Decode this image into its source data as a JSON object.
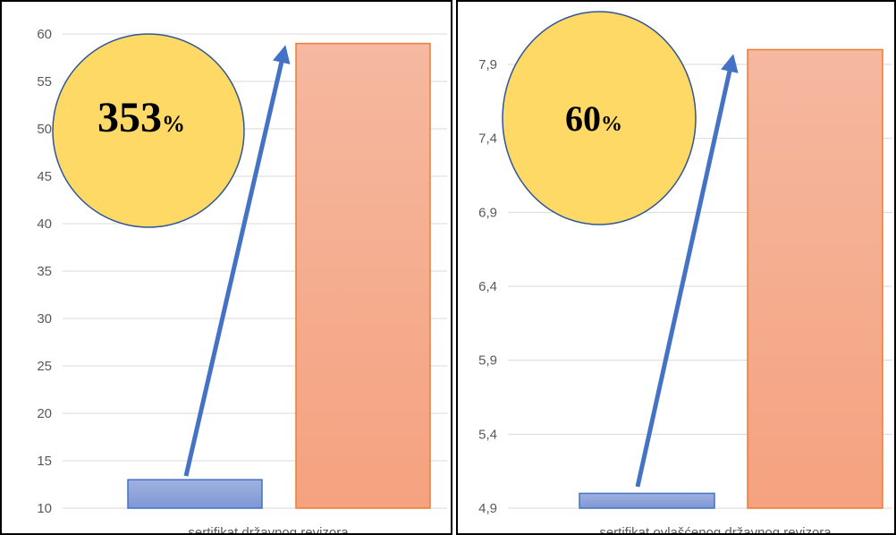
{
  "chart_data": [
    {
      "type": "bar",
      "categories": [
        "sertifikat državnog revizora"
      ],
      "xlabel": "sertifikat državnog revizora",
      "series": [
        {
          "values": [
            13
          ]
        },
        {
          "values": [
            59
          ]
        }
      ],
      "ylim": [
        10,
        60
      ],
      "yticks": [
        10,
        15,
        20,
        25,
        30,
        35,
        40,
        45,
        50,
        55,
        60
      ],
      "ytick_labels": [
        "10",
        "15",
        "20",
        "25",
        "30",
        "35",
        "40",
        "45",
        "50",
        "55",
        "60"
      ],
      "grid": true,
      "callout": {
        "number": "353",
        "suffix": "%"
      }
    },
    {
      "type": "bar",
      "categories": [
        "sertifikat ovlašćenog državnog revizora"
      ],
      "xlabel": "sertifikat ovlašćenog državnog revizora",
      "series": [
        {
          "values": [
            5.0
          ]
        },
        {
          "values": [
            8.0
          ]
        }
      ],
      "ylim": [
        4.9,
        7.9
      ],
      "yticks": [
        4.9,
        5.4,
        5.9,
        6.4,
        6.9,
        7.4,
        7.9
      ],
      "ytick_labels": [
        "4,9",
        "5,4",
        "5,9",
        "6,4",
        "6,9",
        "7,4",
        "7,9"
      ],
      "grid": true,
      "callout": {
        "number": "60",
        "suffix": "%"
      }
    }
  ],
  "colors": {
    "bar_before_top": "#9fb1e0",
    "bar_before_bottom": "#7f97d4",
    "bar_before_stroke": "#4472c4",
    "bar_after_top": "#f5b8a0",
    "bar_after_bottom": "#f5a27f",
    "bar_after_stroke": "#ed7d31",
    "callout_fill": "#ffd966",
    "callout_stroke": "#2f5597",
    "arrow": "#4472c4",
    "grid": "#d9d9d9"
  }
}
